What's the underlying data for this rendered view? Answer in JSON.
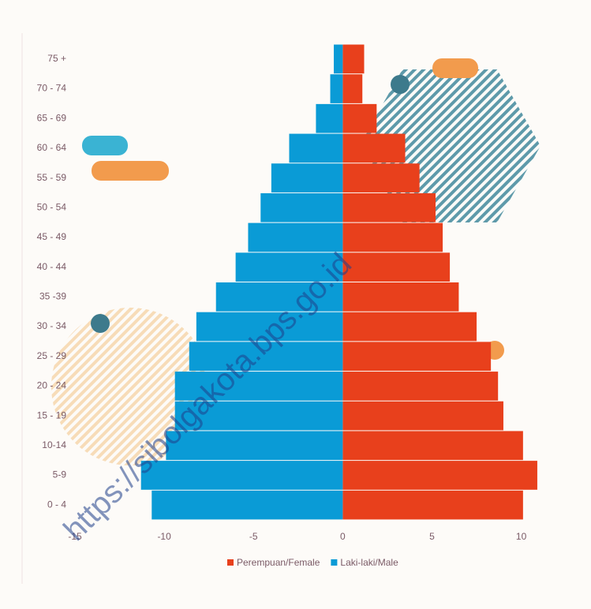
{
  "chart_data": {
    "type": "pyramid",
    "categories": [
      "75 +",
      "70 - 74",
      "65 - 69",
      "60 - 64",
      "55 - 59",
      "50 - 54",
      "45 - 49",
      "40 - 44",
      "35 -39",
      "30 - 34",
      "25 - 29",
      "20 - 24",
      "15 - 19",
      "10-14",
      "5-9",
      "0 - 4"
    ],
    "series": [
      {
        "name": "Perempuan/Female",
        "color": "#e8401c",
        "values": [
          1.2,
          1.1,
          1.9,
          3.5,
          4.3,
          5.2,
          5.6,
          6.0,
          6.5,
          7.5,
          8.3,
          8.7,
          9.0,
          10.1,
          10.9,
          10.1
        ]
      },
      {
        "name": "Laki-laki/Male",
        "color": "#0a9bd6",
        "values": [
          -0.5,
          -0.7,
          -1.5,
          -3.0,
          -4.0,
          -4.6,
          -5.3,
          -6.0,
          -7.1,
          -8.2,
          -8.6,
          -9.4,
          -9.4,
          -9.9,
          -11.3,
          -10.7
        ]
      }
    ],
    "xlim": [
      -15,
      11.3
    ],
    "xticks": [
      -15,
      -10,
      -5,
      0,
      5,
      10
    ],
    "watermark": "https://sibolgakota.bps.go.id"
  }
}
